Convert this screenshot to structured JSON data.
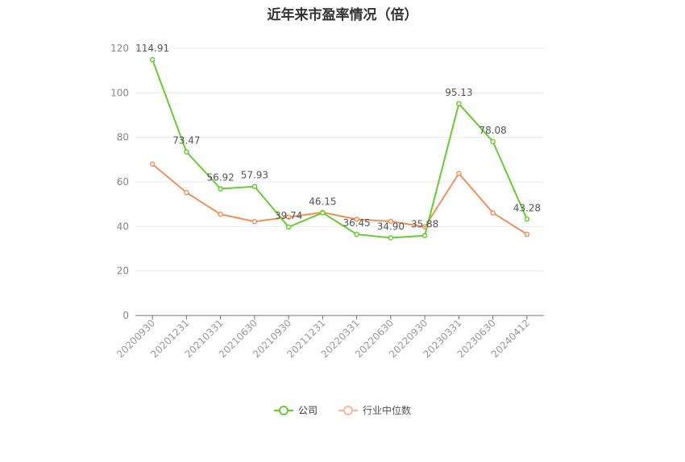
{
  "chart_data": {
    "type": "line",
    "title": "近年来市盈率情况（倍）",
    "categories": [
      "20200930",
      "20201231",
      "20210331",
      "20210630",
      "20210930",
      "20211231",
      "20220331",
      "20220630",
      "20220930",
      "20230331",
      "20230630",
      "20240412"
    ],
    "series": [
      {
        "name": "公司",
        "color": "#66cc33",
        "values": [
          114.91,
          73.47,
          56.92,
          57.93,
          39.74,
          46.15,
          36.45,
          34.9,
          35.88,
          95.13,
          78.08,
          43.28
        ],
        "data_labels": [
          "114.91",
          "73.47",
          "56.92",
          "57.93",
          "39.74",
          "46.15",
          "36.45",
          "34.90",
          "35.88",
          "95.13",
          "78.08",
          "43.28"
        ]
      },
      {
        "name": "行业中位数",
        "color": "#f0905a",
        "values": [
          68.0,
          55.2,
          45.5,
          42.2,
          44.2,
          46.3,
          43.2,
          42.3,
          39.8,
          63.8,
          46.1,
          36.5
        ]
      }
    ],
    "ylim": [
      0,
      120
    ],
    "yticks": [
      0,
      20,
      40,
      60,
      80,
      100,
      120
    ],
    "grid": true,
    "legend_position": "bottom"
  }
}
